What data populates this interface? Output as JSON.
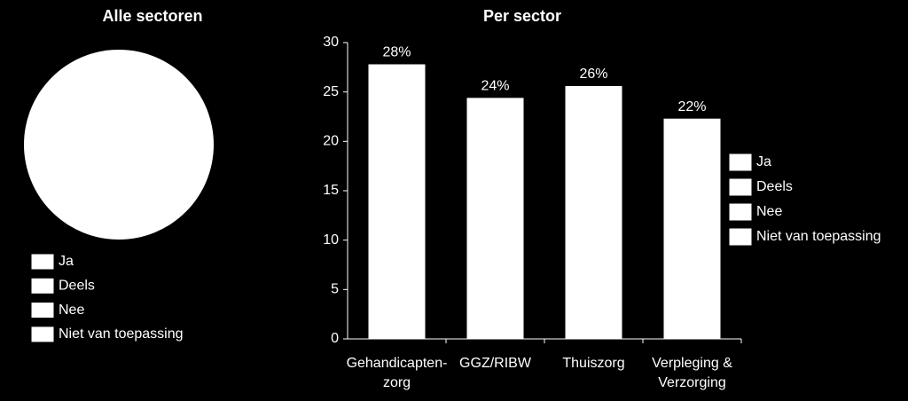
{
  "chart_data": [
    {
      "type": "pie",
      "title": "Alle sectoren",
      "categories": [
        "Ja",
        "Deels",
        "Nee",
        "Niet van toepassing"
      ],
      "values": [
        100,
        0,
        0,
        0
      ],
      "colors": [
        "#ffffff",
        "#ffffff",
        "#ffffff",
        "#ffffff"
      ]
    },
    {
      "type": "bar",
      "title": "Per sector",
      "categories": [
        "Gehandicapten-\nzorg",
        "GGZ/RIBW",
        "Thuiszorg",
        "Verpleging &\nVerzorging"
      ],
      "series": [
        {
          "name": "Ja",
          "color": "#ffffff",
          "values": [
            27.8,
            24.4,
            25.6,
            22.3
          ],
          "value_labels": [
            "28%",
            "24%",
            "26%",
            "22%"
          ]
        },
        {
          "name": "Deels",
          "color": "#ffffff",
          "values": [
            null,
            null,
            null,
            null
          ]
        },
        {
          "name": "Nee",
          "color": "#ffffff",
          "values": [
            null,
            null,
            null,
            null
          ]
        },
        {
          "name": "Niet van toepassing",
          "color": "#ffffff",
          "values": [
            null,
            null,
            null,
            null
          ]
        }
      ],
      "ylim": [
        0,
        30
      ],
      "yticks": [
        0,
        5,
        10,
        15,
        20,
        25,
        30
      ]
    }
  ]
}
